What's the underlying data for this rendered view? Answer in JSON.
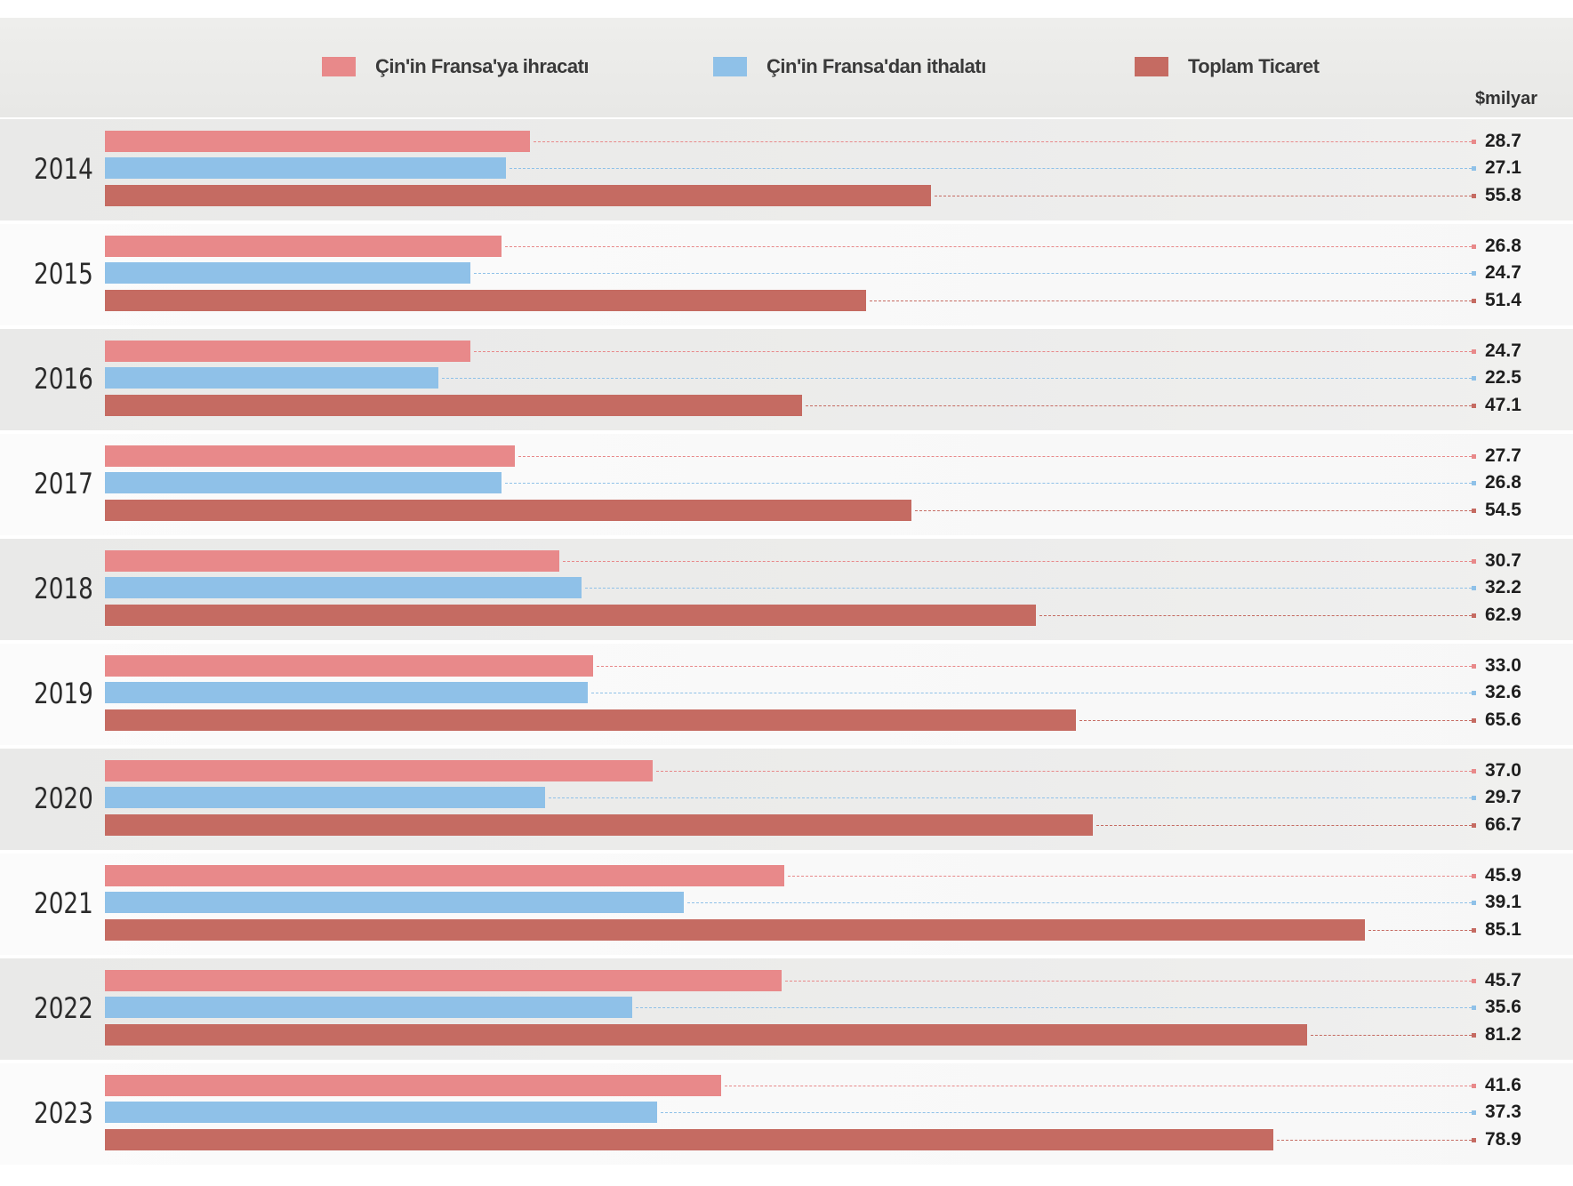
{
  "legend": {
    "exports_label": "Çin'in Fransa'ya ihracatı",
    "imports_label": "Çin'in Fransa'dan ithalatı",
    "total_label": "Toplam Ticaret"
  },
  "unit_label": "$milyar",
  "colors": {
    "exports": "#e8898a",
    "imports": "#8fc1e8",
    "total": "#c56b62"
  },
  "chart_data": {
    "type": "bar",
    "orientation": "horizontal",
    "categories": [
      "2014",
      "2015",
      "2016",
      "2017",
      "2018",
      "2019",
      "2020",
      "2021",
      "2022",
      "2023"
    ],
    "series": [
      {
        "name": "Çin'in Fransa'ya ihracatı",
        "values": [
          28.7,
          26.8,
          24.7,
          27.7,
          30.7,
          33.0,
          37.0,
          45.9,
          45.7,
          41.6
        ],
        "labels": [
          "28.7",
          "26.8",
          "24.7",
          "27.7",
          "30.7",
          "33.0",
          "37.0",
          "45.9",
          "45.7",
          "41.6"
        ]
      },
      {
        "name": "Çin'in Fransa'dan ithalatı",
        "values": [
          27.1,
          24.7,
          22.5,
          26.8,
          32.2,
          32.6,
          29.7,
          39.1,
          35.6,
          37.3
        ],
        "labels": [
          "27.1",
          "24.7",
          "22.5",
          "26.8",
          "32.2",
          "32.6",
          "29.7",
          "39.1",
          "35.6",
          "37.3"
        ]
      },
      {
        "name": "Toplam Ticaret",
        "values": [
          55.8,
          51.4,
          47.1,
          54.5,
          62.9,
          65.6,
          66.7,
          85.1,
          81.2,
          78.9
        ],
        "labels": [
          "55.8",
          "51.4",
          "47.1",
          "54.5",
          "62.9",
          "65.6",
          "66.7",
          "85.1",
          "81.2",
          "78.9"
        ]
      }
    ],
    "unit": "$milyar",
    "legend_position": "top",
    "grid": false
  }
}
